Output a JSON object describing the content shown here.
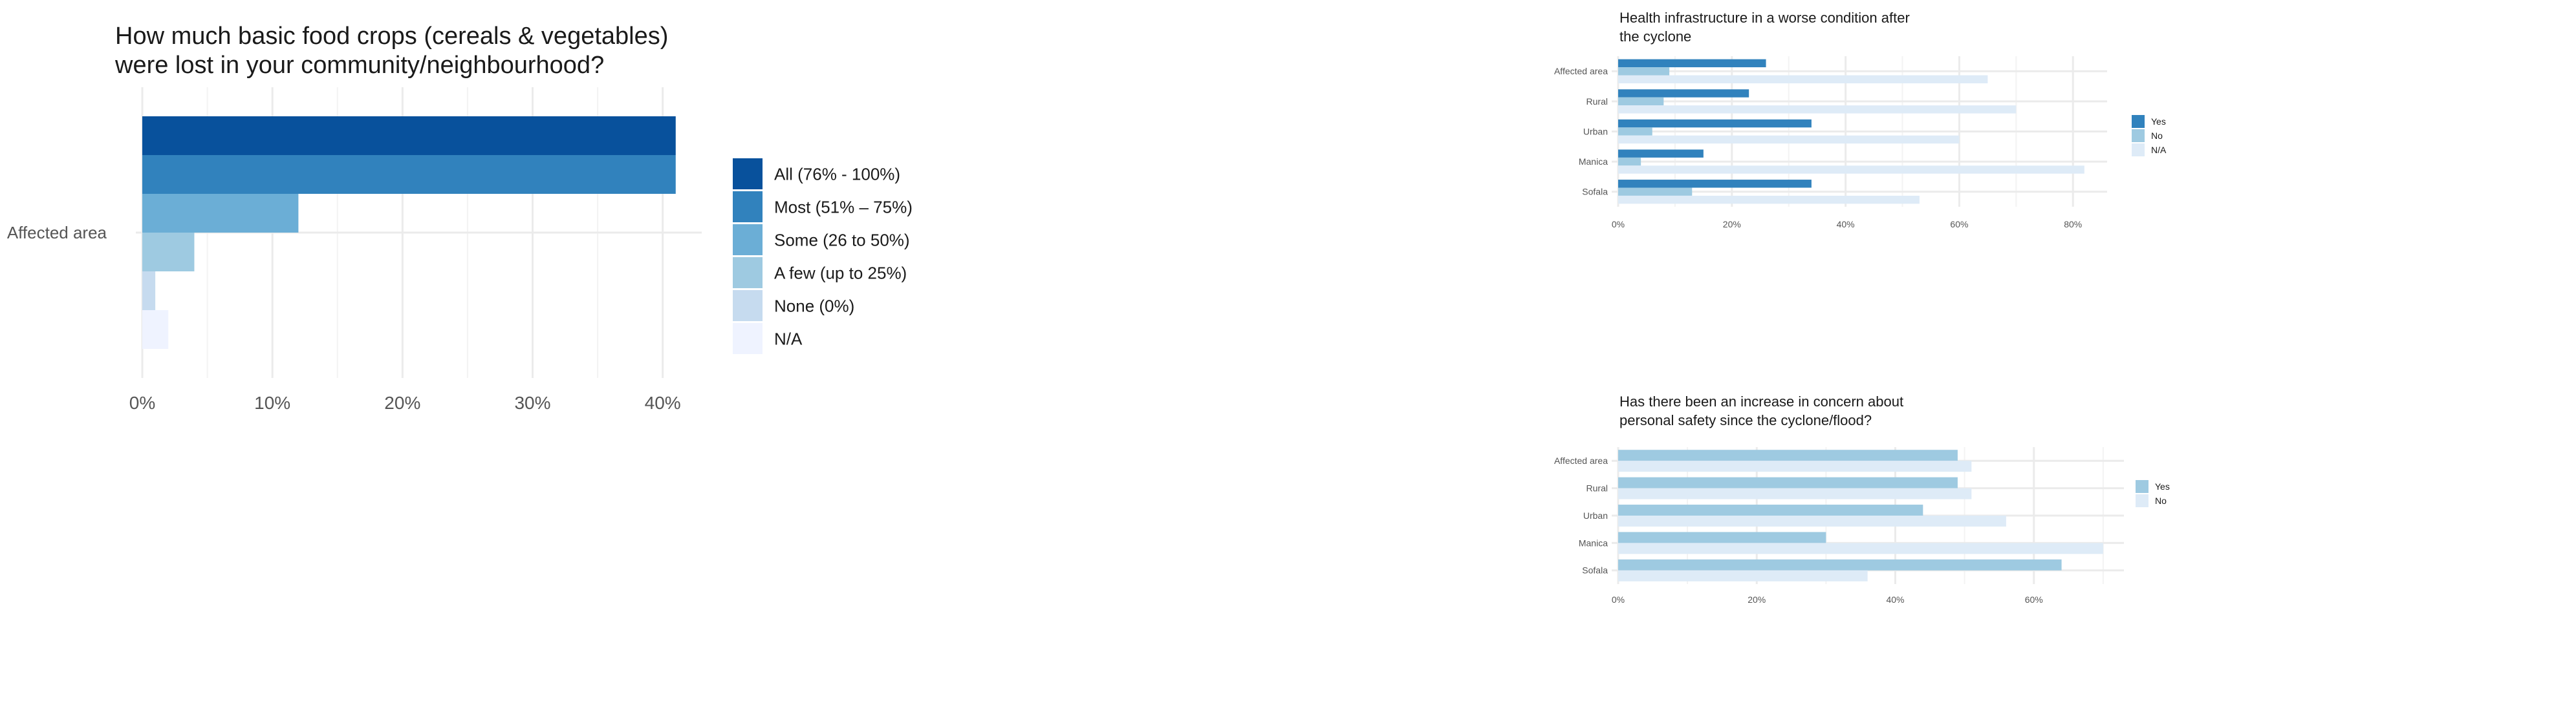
{
  "chart_data": [
    {
      "type": "bar",
      "orientation": "horizontal",
      "title": "How much basic food crops (cereals & vegetables) were lost in your community/neighbourhood?",
      "title_lines": [
        "How much basic food crops (cereals & vegetables)",
        "were lost in your community/neighbourhood?"
      ],
      "categories": [
        "Affected area"
      ],
      "series": [
        {
          "name": "All (76% - 100%)",
          "color": "#08519c",
          "values": [
            41
          ]
        },
        {
          "name": "Most (51% – 75%)",
          "color": "#3182bd",
          "values": [
            41
          ]
        },
        {
          "name": "Some (26 to 50%)",
          "color": "#6baed6",
          "values": [
            12
          ]
        },
        {
          "name": "A few (up to 25%)",
          "color": "#9ecae1",
          "values": [
            4
          ]
        },
        {
          "name": "None (0%)",
          "color": "#c6dbef",
          "values": [
            1
          ]
        },
        {
          "name": "N/A",
          "color": "#eff3ff",
          "values": [
            2
          ]
        }
      ],
      "x_ticks": [
        "0%",
        "10%",
        "20%",
        "30%",
        "40%"
      ],
      "xlim": [
        0,
        43
      ],
      "grid": true,
      "legend_position": "right"
    },
    {
      "type": "bar",
      "orientation": "horizontal",
      "title": "Health infrastructure in a worse condition after the cyclone",
      "title_lines": [
        "Health infrastructure in a worse condition after",
        "the cyclone"
      ],
      "categories": [
        "Affected area",
        "Rural",
        "Urban",
        "Manica",
        "Sofala"
      ],
      "series": [
        {
          "name": "Yes",
          "color": "#3182bd",
          "values": [
            26,
            23,
            34,
            15,
            34
          ]
        },
        {
          "name": "No",
          "color": "#9ecae1",
          "values": [
            9,
            8,
            6,
            4,
            13
          ]
        },
        {
          "name": "N/A",
          "color": "#deebf7",
          "values": [
            65,
            70,
            60,
            82,
            53
          ]
        }
      ],
      "x_ticks": [
        "0%",
        "20%",
        "40%",
        "60%",
        "80%"
      ],
      "xlim": [
        0,
        86
      ],
      "grid": true,
      "legend_position": "right"
    },
    {
      "type": "bar",
      "orientation": "horizontal",
      "title": "Has there been an increase in concern about personal safety since the cyclone/flood?",
      "title_lines": [
        "Has there been an increase in concern about",
        "personal safety since the cyclone/flood?"
      ],
      "categories": [
        "Affected area",
        "Rural",
        "Urban",
        "Manica",
        "Sofala"
      ],
      "series": [
        {
          "name": "Yes",
          "color": "#9ecae1",
          "values": [
            49,
            49,
            44,
            30,
            64
          ]
        },
        {
          "name": "No",
          "color": "#deebf7",
          "values": [
            51,
            51,
            56,
            70,
            36
          ]
        }
      ],
      "x_ticks": [
        "0%",
        "20%",
        "40%",
        "60%"
      ],
      "xlim": [
        0,
        73
      ],
      "grid": true,
      "legend_position": "right"
    }
  ]
}
